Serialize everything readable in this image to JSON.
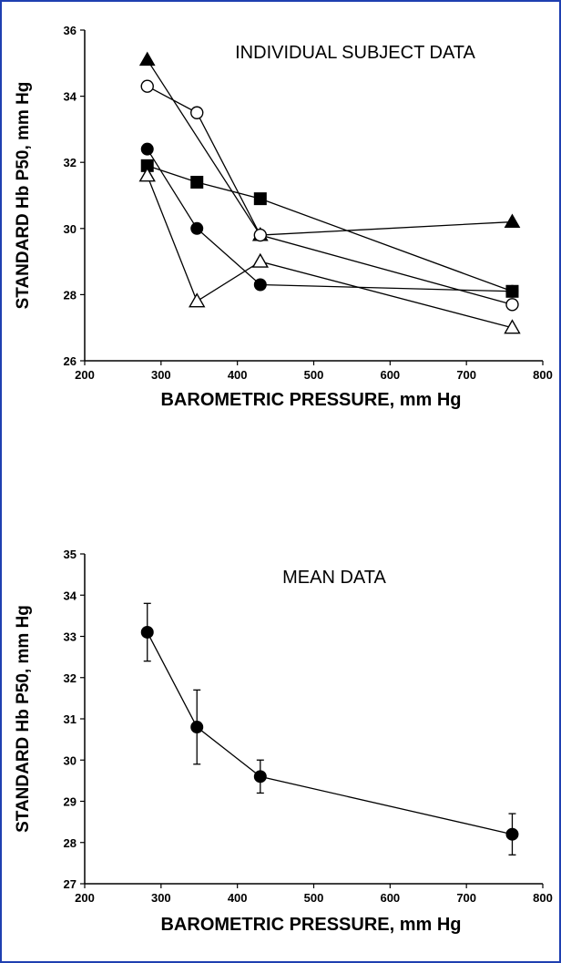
{
  "chart_data": [
    {
      "type": "line",
      "title": "INDIVIDUAL SUBJECT DATA",
      "xlabel": "BAROMETRIC PRESSURE, mm Hg",
      "ylabel": "STANDARD Hb P50, mm Hg",
      "xlim": [
        200,
        800
      ],
      "ylim": [
        26,
        36
      ],
      "xticks": [
        "200",
        "300",
        "400",
        "500",
        "600",
        "700",
        "800"
      ],
      "yticks": [
        "26",
        "28",
        "30",
        "32",
        "34",
        "36"
      ],
      "grid": false,
      "series": [
        {
          "marker": "filled-triangle",
          "x": [
            282,
            430,
            760
          ],
          "y": [
            35.1,
            29.8,
            30.2
          ]
        },
        {
          "marker": "open-circle",
          "x": [
            282,
            347,
            430,
            760
          ],
          "y": [
            34.3,
            33.5,
            29.8,
            27.7
          ]
        },
        {
          "marker": "filled-square",
          "x": [
            282,
            347,
            430,
            760
          ],
          "y": [
            31.9,
            31.4,
            30.9,
            28.1
          ]
        },
        {
          "marker": "filled-circle",
          "x": [
            282,
            347,
            430,
            760
          ],
          "y": [
            32.4,
            30.0,
            28.3,
            28.1
          ]
        },
        {
          "marker": "open-triangle",
          "x": [
            282,
            347,
            430,
            760
          ],
          "y": [
            31.6,
            27.8,
            29.0,
            27.0
          ]
        }
      ]
    },
    {
      "type": "line",
      "title": "MEAN  DATA",
      "xlabel": "BAROMETRIC PRESSURE, mm Hg",
      "ylabel": "STANDARD Hb P50,  mm Hg",
      "xlim": [
        200,
        800
      ],
      "ylim": [
        27,
        35
      ],
      "xticks": [
        "200",
        "300",
        "400",
        "500",
        "600",
        "700",
        "800"
      ],
      "yticks": [
        "27",
        "28",
        "29",
        "30",
        "31",
        "32",
        "33",
        "34",
        "35"
      ],
      "grid": false,
      "series": [
        {
          "marker": "filled-circle",
          "x": [
            282,
            347,
            430,
            760
          ],
          "y": [
            33.1,
            30.8,
            29.6,
            28.2
          ],
          "error": [
            0.7,
            0.9,
            0.4,
            0.5
          ]
        }
      ]
    }
  ],
  "colors": {
    "frame": "#1f3fb0",
    "ink": "#000000"
  }
}
